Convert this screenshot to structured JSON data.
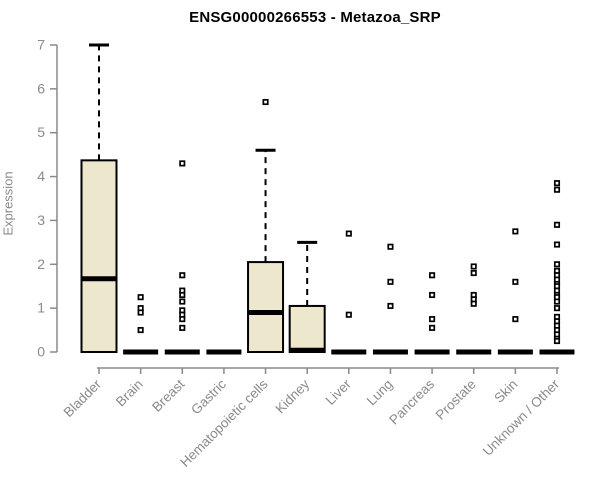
{
  "title": "ENSG00000266553 - Metazoa_SRP",
  "colors": {
    "box_fill": "#ede8cd",
    "box_stroke": "#000000",
    "axis": "#8a8a8a",
    "tick_label": "#8a8a8a",
    "title": "#000000"
  },
  "chart_data": {
    "type": "boxplot",
    "title": "ENSG00000266553 - Metazoa_SRP",
    "xlabel": "",
    "ylabel": "Expression",
    "ylim": [
      0,
      7
    ],
    "yticks": [
      0,
      1,
      2,
      3,
      4,
      5,
      6,
      7
    ],
    "grid": false,
    "legend": null,
    "categories": [
      "Bladder",
      "Brain",
      "Breast",
      "Gastric",
      "Hematopoietic cells",
      "Kidney",
      "Liver",
      "Lung",
      "Pancreas",
      "Prostate",
      "Skin",
      "Unknown / Other"
    ],
    "boxes": [
      {
        "category": "Bladder",
        "q1": 0,
        "median": 1.67,
        "q3": 4.37,
        "whisker_low": 0,
        "whisker_high": 7.0,
        "outliers": []
      },
      {
        "category": "Brain",
        "q1": 0,
        "median": 0,
        "q3": 0,
        "whisker_low": 0,
        "whisker_high": 0,
        "outliers": [
          1.25,
          1.0,
          0.9,
          0.5
        ]
      },
      {
        "category": "Breast",
        "q1": 0,
        "median": 0,
        "q3": 0,
        "whisker_low": 0,
        "whisker_high": 0,
        "outliers": [
          4.3,
          1.75,
          1.4,
          1.3,
          1.15,
          0.95,
          0.85,
          0.75,
          0.55
        ]
      },
      {
        "category": "Gastric",
        "q1": 0,
        "median": 0,
        "q3": 0,
        "whisker_low": 0,
        "whisker_high": 0,
        "outliers": []
      },
      {
        "category": "Hematopoietic cells",
        "q1": 0,
        "median": 0.9,
        "q3": 2.05,
        "whisker_low": 0,
        "whisker_high": 4.6,
        "outliers": [
          5.7
        ]
      },
      {
        "category": "Kidney",
        "q1": 0,
        "median": 0.04,
        "q3": 1.05,
        "whisker_low": 0,
        "whisker_high": 2.5,
        "outliers": []
      },
      {
        "category": "Liver",
        "q1": 0,
        "median": 0,
        "q3": 0,
        "whisker_low": 0,
        "whisker_high": 0,
        "outliers": [
          2.7,
          0.85
        ]
      },
      {
        "category": "Lung",
        "q1": 0,
        "median": 0,
        "q3": 0,
        "whisker_low": 0,
        "whisker_high": 0,
        "outliers": [
          2.4,
          1.6,
          1.05
        ]
      },
      {
        "category": "Pancreas",
        "q1": 0,
        "median": 0,
        "q3": 0,
        "whisker_low": 0,
        "whisker_high": 0,
        "outliers": [
          1.75,
          1.3,
          0.75,
          0.55
        ]
      },
      {
        "category": "Prostate",
        "q1": 0,
        "median": 0,
        "q3": 0,
        "whisker_low": 0,
        "whisker_high": 0,
        "outliers": [
          1.95,
          1.8,
          1.3,
          1.2,
          1.1
        ]
      },
      {
        "category": "Skin",
        "q1": 0,
        "median": 0,
        "q3": 0,
        "whisker_low": 0,
        "whisker_high": 0,
        "outliers": [
          2.75,
          1.6,
          0.75
        ]
      },
      {
        "category": "Unknown / Other",
        "q1": 0,
        "median": 0,
        "q3": 0,
        "whisker_low": 0,
        "whisker_high": 0,
        "outliers": [
          3.85,
          3.7,
          2.9,
          2.45,
          2.0,
          1.85,
          1.75,
          1.65,
          1.55,
          1.5,
          1.4,
          1.3,
          1.25,
          1.15,
          1.0,
          0.8,
          0.7,
          0.6,
          0.5,
          0.4,
          0.3,
          0.25
        ]
      }
    ]
  }
}
